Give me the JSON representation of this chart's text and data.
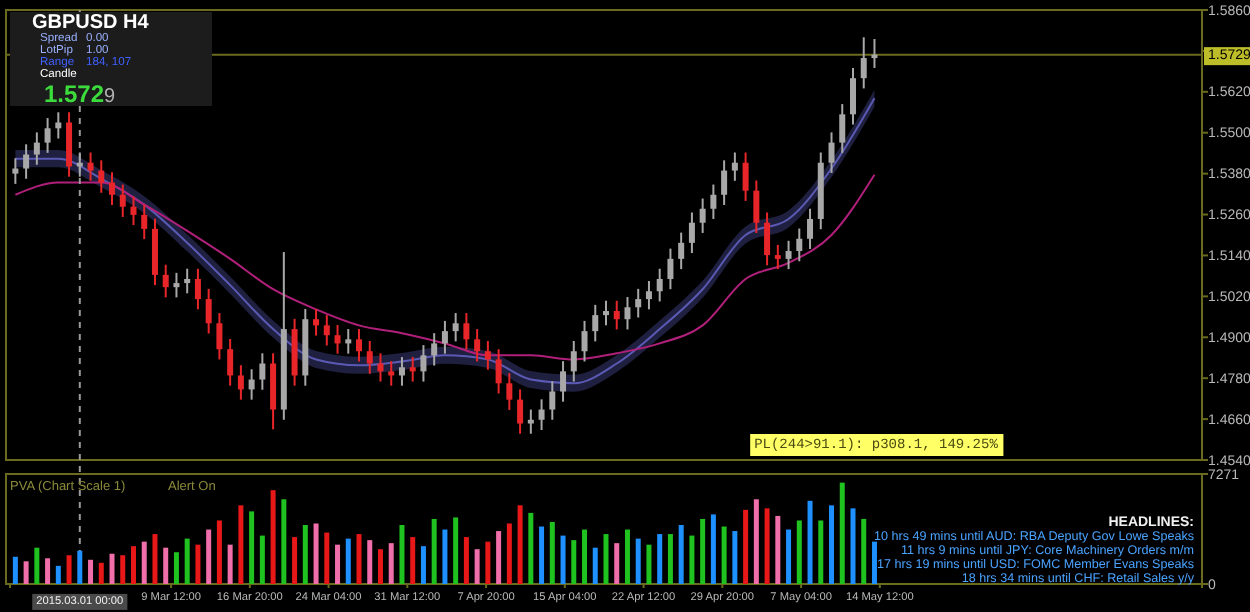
{
  "chart_data": [
    {
      "type": "candlestick",
      "title": "GBPUSD H4",
      "x": [
        "2015-02-23",
        "2015-02-24",
        "2015-02-25",
        "2015-02-26",
        "2015-02-27",
        "2015-02-28",
        "2015-03-01",
        "2015-03-02",
        "2015-03-03",
        "2015-03-04",
        "2015-03-05",
        "2015-03-06",
        "2015-03-07",
        "2015-03-08",
        "2015-03-09",
        "2015-03-10",
        "2015-03-11",
        "2015-03-12",
        "2015-03-13",
        "2015-03-14",
        "2015-03-15",
        "2015-03-16",
        "2015-03-17",
        "2015-03-18",
        "2015-03-19",
        "2015-03-20",
        "2015-03-21",
        "2015-03-22",
        "2015-03-23",
        "2015-03-24",
        "2015-03-25",
        "2015-03-26",
        "2015-03-27",
        "2015-03-28",
        "2015-03-29",
        "2015-03-30",
        "2015-03-31",
        "2015-04-01",
        "2015-04-02",
        "2015-04-03",
        "2015-04-04",
        "2015-04-05",
        "2015-04-06",
        "2015-04-07",
        "2015-04-08",
        "2015-04-09",
        "2015-04-10",
        "2015-04-11",
        "2015-04-12",
        "2015-04-13",
        "2015-04-14",
        "2015-04-15",
        "2015-04-16",
        "2015-04-17",
        "2015-04-18",
        "2015-04-19",
        "2015-04-20",
        "2015-04-21",
        "2015-04-22",
        "2015-04-23",
        "2015-04-24",
        "2015-04-25",
        "2015-04-26",
        "2015-04-27",
        "2015-04-28",
        "2015-04-29",
        "2015-04-30",
        "2015-05-01",
        "2015-05-02",
        "2015-05-03",
        "2015-05-04",
        "2015-05-05",
        "2015-05-06",
        "2015-05-07",
        "2015-05-08",
        "2015-05-09",
        "2015-05-10",
        "2015-05-11",
        "2015-05-12",
        "2015-05-13",
        "2015-05-14"
      ],
      "ohlc": [
        [
          1.538,
          1.5425,
          1.535,
          1.5395
        ],
        [
          1.5395,
          1.5466,
          1.5365,
          1.5436
        ],
        [
          1.5436,
          1.5501,
          1.5406,
          1.5471
        ],
        [
          1.5471,
          1.5543,
          1.5441,
          1.5513
        ],
        [
          1.5513,
          1.556,
          1.5483,
          1.553
        ],
        [
          1.553,
          1.556,
          1.5371,
          1.5401
        ],
        [
          1.5401,
          1.5442,
          1.5371,
          1.5412
        ],
        [
          1.5412,
          1.5442,
          1.5359,
          1.5389
        ],
        [
          1.5389,
          1.5419,
          1.5324,
          1.5354
        ],
        [
          1.5354,
          1.5384,
          1.5288,
          1.5318
        ],
        [
          1.5318,
          1.5348,
          1.5253,
          1.5283
        ],
        [
          1.5283,
          1.5313,
          1.5229,
          1.5259
        ],
        [
          1.5259,
          1.5289,
          1.5188,
          1.5218
        ],
        [
          1.5218,
          1.5248,
          1.5053,
          1.5083
        ],
        [
          1.5083,
          1.5113,
          1.5017,
          1.5047
        ],
        [
          1.5047,
          1.5089,
          1.5017,
          1.5059
        ],
        [
          1.5059,
          1.5101,
          1.5029,
          1.5071
        ],
        [
          1.5071,
          1.5101,
          1.4982,
          1.5012
        ],
        [
          1.5012,
          1.5042,
          1.4911,
          1.4941
        ],
        [
          1.4941,
          1.4971,
          1.4835,
          1.4865
        ],
        [
          1.4865,
          1.4895,
          1.4758,
          1.4788
        ],
        [
          1.4788,
          1.4818,
          1.4717,
          1.4747
        ],
        [
          1.4747,
          1.4806,
          1.4717,
          1.4776
        ],
        [
          1.4776,
          1.4853,
          1.4746,
          1.4823
        ],
        [
          1.4823,
          1.4853,
          1.463,
          1.4688
        ],
        [
          1.4688,
          1.515,
          1.4658,
          1.4924
        ],
        [
          1.4924,
          1.4954,
          1.4758,
          1.4788
        ],
        [
          1.4788,
          1.4983,
          1.4758,
          1.4953
        ],
        [
          1.4953,
          1.4983,
          1.4905,
          1.4935
        ],
        [
          1.4935,
          1.4965,
          1.4876,
          1.4906
        ],
        [
          1.4906,
          1.4936,
          1.4852,
          1.4882
        ],
        [
          1.4882,
          1.4924,
          1.4852,
          1.4894
        ],
        [
          1.4894,
          1.4924,
          1.4829,
          1.4859
        ],
        [
          1.4859,
          1.4889,
          1.4793,
          1.4823
        ],
        [
          1.4823,
          1.4853,
          1.477,
          1.48
        ],
        [
          1.48,
          1.483,
          1.4758,
          1.4788
        ],
        [
          1.4788,
          1.4842,
          1.4758,
          1.4812
        ],
        [
          1.4812,
          1.4842,
          1.477,
          1.48
        ],
        [
          1.48,
          1.4877,
          1.477,
          1.4847
        ],
        [
          1.4847,
          1.4912,
          1.4817,
          1.4882
        ],
        [
          1.4882,
          1.4948,
          1.4852,
          1.4918
        ],
        [
          1.4918,
          1.4971,
          1.4888,
          1.4941
        ],
        [
          1.4941,
          1.4971,
          1.4864,
          1.4894
        ],
        [
          1.4894,
          1.4924,
          1.4829,
          1.4859
        ],
        [
          1.4859,
          1.4889,
          1.4805,
          1.4835
        ],
        [
          1.4835,
          1.4865,
          1.4735,
          1.4765
        ],
        [
          1.4765,
          1.4795,
          1.4687,
          1.4717
        ],
        [
          1.4717,
          1.4747,
          1.4617,
          1.4647
        ],
        [
          1.4647,
          1.4688,
          1.4617,
          1.4658
        ],
        [
          1.4658,
          1.4718,
          1.4628,
          1.4688
        ],
        [
          1.4688,
          1.4771,
          1.4658,
          1.4741
        ],
        [
          1.4741,
          1.483,
          1.4711,
          1.48
        ],
        [
          1.48,
          1.4889,
          1.477,
          1.4859
        ],
        [
          1.4859,
          1.4948,
          1.4829,
          1.4918
        ],
        [
          1.4918,
          1.4995,
          1.4888,
          1.4965
        ],
        [
          1.4965,
          1.5007,
          1.4935,
          1.4977
        ],
        [
          1.4977,
          1.5007,
          1.4923,
          1.4953
        ],
        [
          1.4953,
          1.5018,
          1.4923,
          1.4988
        ],
        [
          1.4988,
          1.5042,
          1.4958,
          1.5012
        ],
        [
          1.5012,
          1.5065,
          1.4982,
          1.5035
        ],
        [
          1.5035,
          1.5101,
          1.5005,
          1.5071
        ],
        [
          1.5071,
          1.516,
          1.5041,
          1.513
        ],
        [
          1.513,
          1.5207,
          1.51,
          1.5177
        ],
        [
          1.5177,
          1.5266,
          1.5147,
          1.5236
        ],
        [
          1.5236,
          1.5307,
          1.5206,
          1.5277
        ],
        [
          1.5277,
          1.5348,
          1.5247,
          1.5318
        ],
        [
          1.5318,
          1.5419,
          1.5288,
          1.5389
        ],
        [
          1.5389,
          1.5442,
          1.5359,
          1.5412
        ],
        [
          1.5412,
          1.5442,
          1.53,
          1.533
        ],
        [
          1.533,
          1.536,
          1.5206,
          1.5236
        ],
        [
          1.5236,
          1.5266,
          1.5111,
          1.5141
        ],
        [
          1.5141,
          1.5171,
          1.51,
          1.513
        ],
        [
          1.513,
          1.5183,
          1.51,
          1.5153
        ],
        [
          1.5153,
          1.5219,
          1.5123,
          1.5189
        ],
        [
          1.5189,
          1.5277,
          1.5159,
          1.5247
        ],
        [
          1.5247,
          1.5442,
          1.5217,
          1.5412
        ],
        [
          1.5412,
          1.5501,
          1.5382,
          1.5471
        ],
        [
          1.5471,
          1.5584,
          1.5441,
          1.5554
        ],
        [
          1.5554,
          1.569,
          1.5524,
          1.566
        ],
        [
          1.566,
          1.578,
          1.563,
          1.5719
        ],
        [
          1.5719,
          1.5775,
          1.569,
          1.5729
        ]
      ],
      "colors": [
        "#a8a8a8",
        "#a8a8a8",
        "#a8a8a8",
        "#a8a8a8",
        "#a8a8a8",
        "#e8262a",
        "#a8a8a8",
        "#e8262a",
        "#e8262a",
        "#e8262a",
        "#e8262a",
        "#e8262a",
        "#e8262a",
        "#e8262a",
        "#e8262a",
        "#a8a8a8",
        "#a8a8a8",
        "#e8262a",
        "#e8262a",
        "#e8262a",
        "#e8262a",
        "#e8262a",
        "#a8a8a8",
        "#a8a8a8",
        "#e8262a",
        "#a8a8a8",
        "#e8262a",
        "#a8a8a8",
        "#e8262a",
        "#e8262a",
        "#e8262a",
        "#a8a8a8",
        "#e8262a",
        "#e8262a",
        "#e8262a",
        "#e8262a",
        "#a8a8a8",
        "#e8262a",
        "#a8a8a8",
        "#a8a8a8",
        "#a8a8a8",
        "#a8a8a8",
        "#e8262a",
        "#e8262a",
        "#e8262a",
        "#e8262a",
        "#e8262a",
        "#e8262a",
        "#a8a8a8",
        "#a8a8a8",
        "#a8a8a8",
        "#a8a8a8",
        "#a8a8a8",
        "#a8a8a8",
        "#a8a8a8",
        "#a8a8a8",
        "#e8262a",
        "#a8a8a8",
        "#a8a8a8",
        "#a8a8a8",
        "#a8a8a8",
        "#a8a8a8",
        "#a8a8a8",
        "#a8a8a8",
        "#a8a8a8",
        "#a8a8a8",
        "#a8a8a8",
        "#a8a8a8",
        "#e8262a",
        "#e8262a",
        "#e8262a",
        "#e8262a",
        "#a8a8a8",
        "#a8a8a8",
        "#a8a8a8",
        "#a8a8a8",
        "#a8a8a8",
        "#a8a8a8",
        "#a8a8a8",
        "#a8a8a8",
        "#a8a8a8"
      ],
      "series": [
        {
          "type": "line",
          "color": "#5a5ab4",
          "x": [
            "2015-02-23",
            "2015-02-27",
            "2015-03-03",
            "2015-03-07",
            "2015-03-11",
            "2015-03-15",
            "2015-03-19",
            "2015-03-23",
            "2015-03-27",
            "2015-03-31",
            "2015-04-04",
            "2015-04-08",
            "2015-04-12",
            "2015-04-16",
            "2015-04-20",
            "2015-04-24",
            "2015-04-28",
            "2015-05-02",
            "2015-05-06",
            "2015-05-10",
            "2015-05-14"
          ],
          "values": [
            1.5424,
            1.5424,
            1.5365,
            1.5289,
            1.5177,
            1.5053,
            1.4924,
            1.4835,
            1.4818,
            1.4829,
            1.4847,
            1.4835,
            1.4776,
            1.4765,
            1.4823,
            1.4924,
            1.5041,
            1.52,
            1.5247,
            1.5395,
            1.5601
          ],
          "lower": [
            1.5399,
            1.5399,
            1.534,
            1.5264,
            1.5152,
            1.5028,
            1.4899,
            1.481,
            1.4793,
            1.4804,
            1.4822,
            1.481,
            1.4751,
            1.474,
            1.4798,
            1.4899,
            1.5016,
            1.5175,
            1.5222,
            1.537,
            1.5576
          ],
          "upper": [
            1.5449,
            1.5449,
            1.539,
            1.5314,
            1.5202,
            1.5078,
            1.4949,
            1.486,
            1.4843,
            1.4854,
            1.4872,
            1.486,
            1.4801,
            1.479,
            1.4848,
            1.4949,
            1.5066,
            1.5225,
            1.5272,
            1.542,
            1.5626
          ]
        },
        {
          "type": "line",
          "color": "#b0207a",
          "x": [
            "2015-02-23",
            "2015-02-27",
            "2015-03-03",
            "2015-03-07",
            "2015-03-11",
            "2015-03-15",
            "2015-03-19",
            "2015-03-23",
            "2015-03-27",
            "2015-03-31",
            "2015-04-04",
            "2015-04-08",
            "2015-04-12",
            "2015-04-16",
            "2015-04-20",
            "2015-04-24",
            "2015-04-28",
            "2015-05-02",
            "2015-05-06",
            "2015-05-10",
            "2015-05-14"
          ],
          "values": [
            1.5318,
            1.5354,
            1.5354,
            1.5289,
            1.5212,
            1.513,
            1.5041,
            1.4982,
            1.4935,
            1.4912,
            1.4882,
            1.4847,
            1.4847,
            1.4835,
            1.4853,
            1.4882,
            1.4935,
            1.5071,
            1.5118,
            1.52,
            1.5377
          ]
        }
      ],
      "xlim": [
        "2015-02-22T12:00",
        "2015-06-13T12:00"
      ],
      "ylim": [
        1.454,
        1.586
      ],
      "yticks": [
        {
          "value": 1.586,
          "label": "1.5860"
        },
        {
          "value": 1.574,
          "label": null
        },
        {
          "value": 1.562,
          "label": "1.5620"
        },
        {
          "value": 1.55,
          "label": "1.5500"
        },
        {
          "value": 1.538,
          "label": "1.5380"
        },
        {
          "value": 1.526,
          "label": "1.5260"
        },
        {
          "value": 1.514,
          "label": "1.5140"
        },
        {
          "value": 1.502,
          "label": "1.5020"
        },
        {
          "value": 1.49,
          "label": "1.4900"
        },
        {
          "value": 1.478,
          "label": "1.4780"
        },
        {
          "value": 1.466,
          "label": "1.4660"
        },
        {
          "value": 1.454,
          "label": "1.4540"
        }
      ],
      "tick_labels": "y",
      "ref_lines": [
        {
          "axis": "x",
          "value": "2015-03-01",
          "label": "2015.03.01 00:00",
          "color": "#9a9a9a",
          "line_style": "dashed"
        },
        {
          "axis": "y",
          "value": 1.5729,
          "label": "1.5729",
          "color": "#6b6b1f",
          "line_style": "solid"
        }
      ],
      "annotations": [
        "Spread",
        "0.00",
        "LotPip",
        "1.00",
        "Range",
        "184, 107",
        "Candle",
        "1.5729",
        "PL(244>91.1): p308.1, 149.25%"
      ]
    },
    {
      "type": "bar",
      "x": [
        "2015-02-23",
        "2015-02-24",
        "2015-02-25",
        "2015-02-26",
        "2015-02-27",
        "2015-02-28",
        "2015-03-01",
        "2015-03-02",
        "2015-03-03",
        "2015-03-04",
        "2015-03-05",
        "2015-03-06",
        "2015-03-07",
        "2015-03-08",
        "2015-03-09",
        "2015-03-10",
        "2015-03-11",
        "2015-03-12",
        "2015-03-13",
        "2015-03-14",
        "2015-03-15",
        "2015-03-16",
        "2015-03-17",
        "2015-03-18",
        "2015-03-19",
        "2015-03-20",
        "2015-03-21",
        "2015-03-22",
        "2015-03-23",
        "2015-03-24",
        "2015-03-25",
        "2015-03-26",
        "2015-03-27",
        "2015-03-28",
        "2015-03-29",
        "2015-03-30",
        "2015-03-31",
        "2015-04-01",
        "2015-04-02",
        "2015-04-03",
        "2015-04-04",
        "2015-04-05",
        "2015-04-06",
        "2015-04-07",
        "2015-04-08",
        "2015-04-09",
        "2015-04-10",
        "2015-04-11",
        "2015-04-12",
        "2015-04-13",
        "2015-04-14",
        "2015-04-15",
        "2015-04-16",
        "2015-04-17",
        "2015-04-18",
        "2015-04-19",
        "2015-04-20",
        "2015-04-21",
        "2015-04-22",
        "2015-04-23",
        "2015-04-24",
        "2015-04-25",
        "2015-04-26",
        "2015-04-27",
        "2015-04-28",
        "2015-04-29",
        "2015-04-30",
        "2015-05-01",
        "2015-05-02",
        "2015-05-03",
        "2015-05-04",
        "2015-05-05",
        "2015-05-06",
        "2015-05-07",
        "2015-05-08",
        "2015-05-09",
        "2015-05-10",
        "2015-05-11",
        "2015-05-12",
        "2015-05-13",
        "2015-05-14"
      ],
      "values": [
        1800,
        1500,
        2400,
        1700,
        1200,
        1900,
        2200,
        1600,
        1400,
        2000,
        1900,
        2500,
        2800,
        3300,
        2400,
        2100,
        3000,
        2600,
        3600,
        4200,
        2600,
        5200,
        4800,
        3200,
        6200,
        5600,
        3100,
        3900,
        4000,
        3400,
        2600,
        3000,
        3300,
        2900,
        2300,
        2700,
        3900,
        3100,
        2500,
        4300,
        3600,
        4400,
        3100,
        2300,
        2800,
        3500,
        4000,
        5200,
        4700,
        3800,
        4100,
        3200,
        2900,
        3600,
        2400,
        3300,
        2700,
        3600,
        3000,
        2600,
        3300,
        3300,
        3900,
        3200,
        4300,
        4600,
        3800,
        3500,
        4900,
        5600,
        5000,
        4500,
        3600,
        4200,
        5500,
        4200,
        5200,
        6700,
        5000,
        4300,
        2800
      ],
      "colors": [
        "#1e90ff",
        "#f06eaa",
        "#1fc21f",
        "#f06eaa",
        "#1e90ff",
        "#e81818",
        "#1e90ff",
        "#f06eaa",
        "#e81818",
        "#f06eaa",
        "#e81818",
        "#e81818",
        "#f06eaa",
        "#e81818",
        "#f06eaa",
        "#1fc21f",
        "#1fc21f",
        "#e81818",
        "#f06eaa",
        "#e81818",
        "#f06eaa",
        "#e81818",
        "#1fc21f",
        "#1fc21f",
        "#e81818",
        "#1fc21f",
        "#e81818",
        "#1fc21f",
        "#f06eaa",
        "#e81818",
        "#f06eaa",
        "#1e90ff",
        "#e81818",
        "#f06eaa",
        "#e81818",
        "#f06eaa",
        "#1fc21f",
        "#e81818",
        "#1e90ff",
        "#1fc21f",
        "#1e90ff",
        "#1fc21f",
        "#e81818",
        "#f06eaa",
        "#e81818",
        "#f06eaa",
        "#e81818",
        "#e81818",
        "#1fc21f",
        "#1e90ff",
        "#1fc21f",
        "#1e90ff",
        "#1fc21f",
        "#1fc21f",
        "#1e90ff",
        "#1fc21f",
        "#f06eaa",
        "#1fc21f",
        "#1e90ff",
        "#1fc21f",
        "#1e90ff",
        "#1fc21f",
        "#1e90ff",
        "#1fc21f",
        "#1fc21f",
        "#1e90ff",
        "#1fc21f",
        "#1e90ff",
        "#e81818",
        "#f06eaa",
        "#e81818",
        "#f06eaa",
        "#1e90ff",
        "#1fc21f",
        "#1e90ff",
        "#1fc21f",
        "#1e90ff",
        "#1fc21f",
        "#1e90ff",
        "#1fc21f",
        "#1e90ff"
      ],
      "xlim": [
        "2015-02-22T12:00",
        "2015-06-13T12:00"
      ],
      "xticks": [
        {
          "value": "2015-03-09T12:00",
          "label": "9 Mar 12:00"
        },
        {
          "value": "2015-03-16T20:00",
          "label": "16 Mar 20:00"
        },
        {
          "value": "2015-03-24T04:00",
          "label": "24 Mar 04:00"
        },
        {
          "value": "2015-03-31T12:00",
          "label": "31 Mar 12:00"
        },
        {
          "value": "2015-04-07T20:00",
          "label": "7 Apr 20:00"
        },
        {
          "value": "2015-04-15T04:00",
          "label": "15 Apr 04:00"
        },
        {
          "value": "2015-04-22T12:00",
          "label": "22 Apr 12:00"
        },
        {
          "value": "2015-04-29T20:00",
          "label": "29 Apr 20:00"
        },
        {
          "value": "2015-05-07T04:00",
          "label": "7 May 04:00"
        },
        {
          "value": "2015-05-14T12:00",
          "label": "14 May 12:00"
        }
      ],
      "ylim": [
        0,
        7271
      ],
      "yticks": [
        7271,
        0
      ],
      "annotations": [
        "PVA (Chart Scale 1)",
        "Alert On",
        "HEADLINES:",
        "10 hrs 49 mins until AUD: RBA Deputy Gov Lowe Speaks",
        "11 hrs 9 mins until JPY: Core Machinery Orders m/m",
        "17 hrs 19 mins until USD: FOMC Member Evans Speaks",
        "18 hrs 34 mins until CHF: Retail Sales y/y"
      ]
    }
  ]
}
